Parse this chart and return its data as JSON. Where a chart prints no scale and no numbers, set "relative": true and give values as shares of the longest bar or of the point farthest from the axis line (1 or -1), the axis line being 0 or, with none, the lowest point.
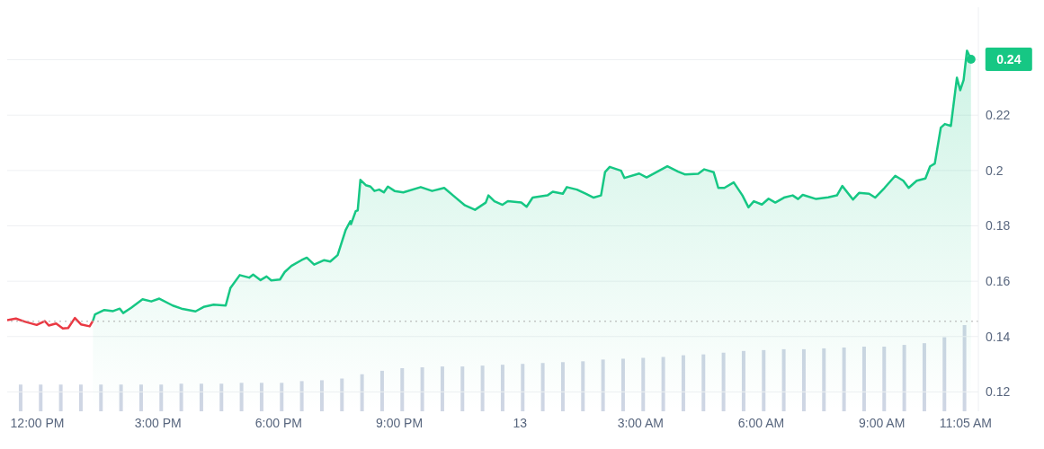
{
  "chart_data": [
    {
      "type": "line",
      "xlim": [
        "--01-12T11:15",
        "--01-13T11:24"
      ],
      "ylim": [
        0.113,
        0.259
      ],
      "xticks": [
        {
          "value": "--01-12T12:00",
          "label": "12:00 PM"
        },
        {
          "value": "--01-12T15:00",
          "label": "3:00 PM"
        },
        {
          "value": "--01-12T18:00",
          "label": "6:00 PM"
        },
        {
          "value": "--01-12T21:00",
          "label": "9:00 PM"
        },
        {
          "value": "--01-13T00:00",
          "label": "13"
        },
        {
          "value": "--01-13T03:00",
          "label": "3:00 AM"
        },
        {
          "value": "--01-13T06:00",
          "label": "6:00 AM"
        },
        {
          "value": "--01-13T09:00",
          "label": "9:00 AM"
        },
        {
          "value": "--01-13T11:05",
          "label": "11:05 AM"
        }
      ],
      "yticks": [
        0.12,
        0.14,
        0.16,
        0.18,
        0.2,
        0.22,
        {
          "value": 0.24,
          "label": null
        }
      ],
      "grid": "y",
      "series": [
        {
          "color": "#ea3943",
          "x": [
            "--01-12T11:15",
            "--01-12T11:28",
            "--01-12T11:41",
            "--01-12T11:59",
            "--01-12T12:11",
            "--01-12T12:17",
            "--01-12T12:28",
            "--01-12T12:38",
            "--01-12T12:46",
            "--01-12T12:56",
            "--01-12T13:05",
            "--01-12T13:18",
            "--01-12T13:23"
          ],
          "values": [
            0.1459,
            0.1465,
            0.1454,
            0.1442,
            0.1456,
            0.144,
            0.1447,
            0.1429,
            0.1431,
            0.1467,
            0.1444,
            0.1437,
            0.1457
          ]
        },
        {
          "type": "area",
          "color": "#16c784",
          "x": [
            "--01-12T13:23",
            "--01-12T13:26",
            "--01-12T13:40",
            "--01-12T13:53",
            "--01-12T14:03",
            "--01-12T14:08",
            "--01-12T14:20",
            "--01-12T14:37",
            "--01-12T14:50",
            "--01-12T15:02",
            "--01-12T15:22",
            "--01-12T15:35",
            "--01-12T15:56",
            "--01-12T16:08",
            "--01-12T16:23",
            "--01-12T16:41",
            "--01-12T16:48",
            "--01-12T17:02",
            "--01-12T17:16",
            "--01-12T17:22",
            "--01-12T17:33",
            "--01-12T17:42",
            "--01-12T17:49",
            "--01-12T18:02",
            "--01-12T18:09",
            "--01-12T18:19",
            "--01-12T18:34",
            "--01-12T18:42",
            "--01-12T18:53",
            "--01-12T19:08",
            "--01-12T19:17",
            "--01-12T19:28",
            "--01-12T19:40",
            "--01-12T19:47",
            "--01-12T19:48",
            "--01-12T19:55",
            "--01-12T19:58",
            "--01-12T20:02",
            "--01-12T20:10",
            "--01-12T20:17",
            "--01-12T20:23",
            "--01-12T20:30",
            "--01-12T20:37",
            "--01-12T20:43",
            "--01-12T20:53",
            "--01-12T21:06",
            "--01-12T21:32",
            "--01-12T21:49",
            "--01-12T22:07",
            "--01-12T22:25",
            "--01-12T22:38",
            "--01-12T22:53",
            "--01-12T23:09",
            "--01-12T23:13",
            "--01-12T23:22",
            "--01-12T23:34",
            "--01-12T23:42",
            "--01-13T00:02",
            "--01-13T00:10",
            "--01-13T00:19",
            "--01-13T00:41",
            "--01-13T00:49",
            "--01-13T01:04",
            "--01-13T01:10",
            "--01-13T01:25",
            "--01-13T01:38",
            "--01-13T01:50",
            "--01-13T02:01",
            "--01-13T02:07",
            "--01-13T02:14",
            "--01-13T02:31",
            "--01-13T02:36",
            "--01-13T02:58",
            "--01-13T03:09",
            "--01-13T03:22",
            "--01-13T03:40",
            "--01-13T03:56",
            "--01-13T04:06",
            "--01-13T04:26",
            "--01-13T04:35",
            "--01-13T04:49",
            "--01-13T04:56",
            "--01-13T05:05",
            "--01-13T05:19",
            "--01-13T05:32",
            "--01-13T05:41",
            "--01-13T05:49",
            "--01-13T06:01",
            "--01-13T06:11",
            "--01-13T06:21",
            "--01-13T06:34",
            "--01-13T06:47",
            "--01-13T06:55",
            "--01-13T07:02",
            "--01-13T07:22",
            "--01-13T07:40",
            "--01-13T07:53",
            "--01-13T08:01",
            "--01-13T08:17",
            "--01-13T08:26",
            "--01-13T08:41",
            "--01-13T08:50",
            "--01-13T09:04",
            "--01-13T09:20",
            "--01-13T09:32",
            "--01-13T09:40",
            "--01-13T09:52",
            "--01-13T10:05",
            "--01-13T10:12",
            "--01-13T10:19",
            "--01-13T10:28",
            "--01-13T10:34",
            "--01-13T10:43",
            "--01-13T10:52",
            "--01-13T10:57",
            "--01-13T11:02",
            "--01-13T11:07",
            "--01-13T11:13"
          ],
          "values": [
            0.1457,
            0.148,
            0.1496,
            0.1492,
            0.1501,
            0.1485,
            0.1504,
            0.1535,
            0.1527,
            0.1537,
            0.1512,
            0.1501,
            0.1491,
            0.1507,
            0.1515,
            0.1512,
            0.1575,
            0.1622,
            0.1613,
            0.1624,
            0.1604,
            0.1617,
            0.1603,
            0.1606,
            0.1633,
            0.1655,
            0.1676,
            0.1685,
            0.166,
            0.1676,
            0.1671,
            0.1694,
            0.1785,
            0.1817,
            0.1806,
            0.1853,
            0.1856,
            0.1966,
            0.1947,
            0.1942,
            0.1926,
            0.1931,
            0.1921,
            0.1942,
            0.1926,
            0.1921,
            0.194,
            0.1926,
            0.1937,
            0.19,
            0.1874,
            0.1858,
            0.1884,
            0.191,
            0.1889,
            0.1876,
            0.1889,
            0.1884,
            0.1869,
            0.1902,
            0.191,
            0.1923,
            0.1916,
            0.194,
            0.1931,
            0.1916,
            0.1902,
            0.191,
            0.1994,
            0.2013,
            0.1999,
            0.1973,
            0.1989,
            0.1975,
            0.1992,
            0.2015,
            0.1996,
            0.1986,
            0.1988,
            0.2004,
            0.1994,
            0.1937,
            0.1937,
            0.1957,
            0.191,
            0.1867,
            0.1889,
            0.1877,
            0.1898,
            0.1884,
            0.1902,
            0.191,
            0.1897,
            0.1912,
            0.1897,
            0.1903,
            0.191,
            0.1944,
            0.1895,
            0.1919,
            0.1916,
            0.1902,
            0.1937,
            0.1981,
            0.1963,
            0.1937,
            0.1963,
            0.1971,
            0.2015,
            0.2025,
            0.2155,
            0.2168,
            0.2161,
            0.2335,
            0.229,
            0.2327,
            0.2433,
            0.2402
          ]
        }
      ],
      "ref_lines": [
        {
          "axis": "y",
          "value": 0.1455,
          "color": "#aaaaaa",
          "line_style": "dotted"
        }
      ],
      "annotations": [
        {
          "text": "0.24",
          "x": "--01-13T11:13",
          "y": 0.2402
        }
      ]
    },
    {
      "type": "bar",
      "relative": true,
      "color": "#cfd6e4",
      "categories": [
        null,
        null,
        null,
        null,
        null,
        null,
        null,
        null,
        null,
        null,
        null,
        null,
        null,
        null,
        null,
        null,
        null,
        null,
        null,
        null,
        null,
        null,
        null,
        null,
        null,
        null,
        null,
        null,
        null,
        null,
        null,
        null,
        null,
        null,
        null,
        null,
        null,
        null,
        null,
        null,
        null,
        null,
        null,
        null,
        null,
        null,
        null,
        null
      ],
      "values": [
        0.31,
        0.31,
        0.31,
        0.31,
        0.31,
        0.31,
        0.31,
        0.31,
        0.32,
        0.32,
        0.32,
        0.33,
        0.33,
        0.33,
        0.35,
        0.36,
        0.38,
        0.43,
        0.47,
        0.5,
        0.51,
        0.52,
        0.52,
        0.53,
        0.54,
        0.55,
        0.56,
        0.57,
        0.58,
        0.6,
        0.61,
        0.62,
        0.63,
        0.65,
        0.66,
        0.68,
        0.7,
        0.71,
        0.72,
        0.72,
        0.73,
        0.74,
        0.75,
        0.75,
        0.77,
        0.79,
        0.86,
        1
      ]
    }
  ]
}
